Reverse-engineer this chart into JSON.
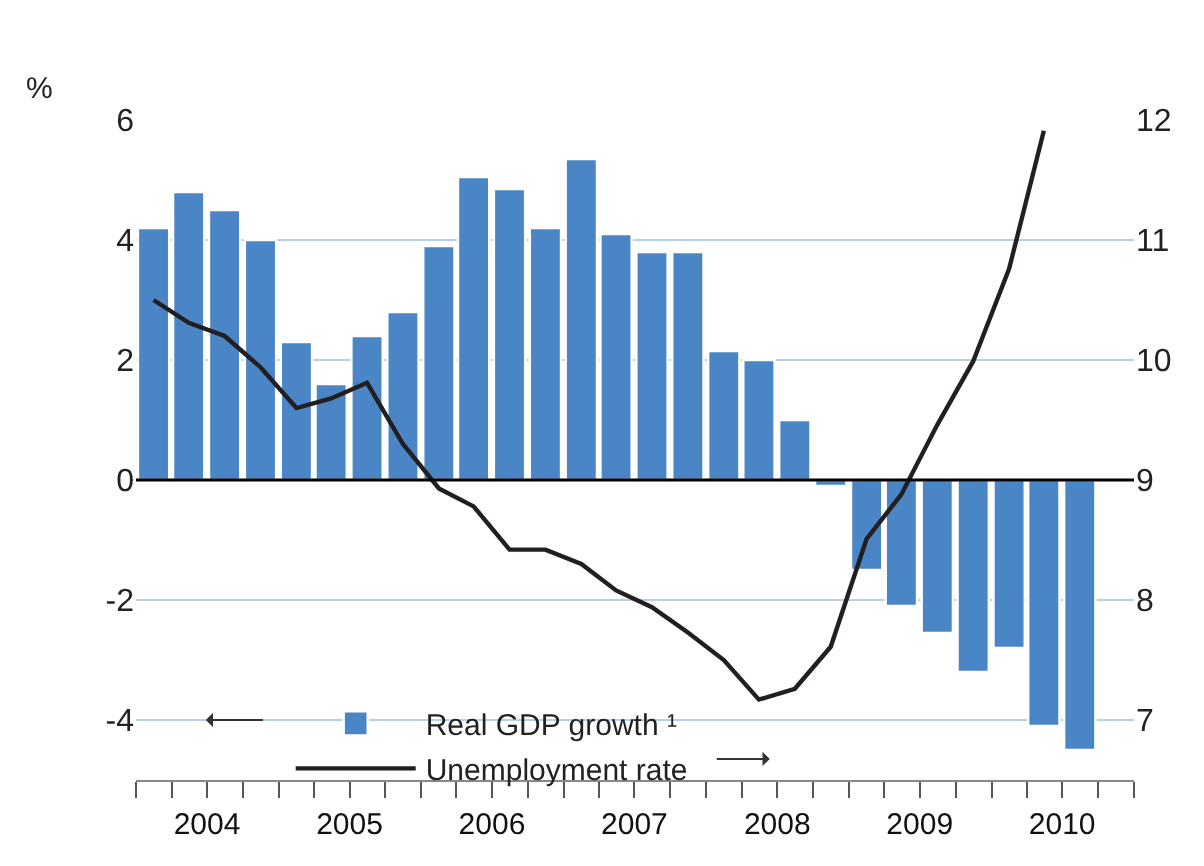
{
  "chart_data": {
    "type": "bar",
    "ylabel": "%",
    "x": [
      "2004-02-15",
      "2004-05-15",
      "2004-08-15",
      "2004-11-15",
      "2005-02-15",
      "2005-05-15",
      "2005-08-15",
      "2005-11-15",
      "2006-02-15",
      "2006-05-15",
      "2006-08-15",
      "2006-11-15",
      "2007-02-15",
      "2007-05-15",
      "2007-08-15",
      "2007-11-15",
      "2008-02-15",
      "2008-05-15",
      "2008-08-15",
      "2008-11-15",
      "2009-02-15",
      "2009-05-15",
      "2009-08-15",
      "2009-11-15",
      "2010-02-15",
      "2010-05-15",
      "2010-08-15"
    ],
    "series": [
      {
        "name": "Real GDP growth ¹",
        "color": "#4a86c5",
        "values": [
          4.2,
          4.8,
          4.5,
          4.0,
          2.3,
          1.6,
          2.4,
          2.8,
          3.9,
          5.05,
          4.85,
          4.2,
          5.35,
          4.1,
          3.8,
          3.8,
          2.15,
          2.0,
          1.0,
          -0.1,
          -1.5,
          -2.1,
          -2.55,
          -3.2,
          -2.8,
          -4.1,
          -4.5
        ]
      },
      {
        "name": "Unemployment rate",
        "type": "line",
        "axis": "y2",
        "color": "#231f20",
        "values": [
          10.5,
          10.31,
          10.2,
          9.94,
          9.6,
          9.68,
          9.81,
          9.3,
          8.93,
          8.78,
          8.42,
          8.42,
          8.3,
          8.08,
          7.94,
          7.73,
          7.5,
          7.17,
          7.26,
          7.61,
          8.51,
          8.88,
          9.46,
          9.99,
          10.76,
          11.91,
          null
        ]
      }
    ],
    "xlim": [
      "2004-01-01",
      "2011-01-01"
    ],
    "xticks": [
      {
        "value": "2004-01-01",
        "label": null
      },
      {
        "value": "2004-04-01",
        "label": null
      },
      {
        "value": "2004-07-01",
        "label": "2004"
      },
      {
        "value": "2004-10-01",
        "label": null
      },
      {
        "value": "2005-01-01",
        "label": null
      },
      {
        "value": "2005-04-01",
        "label": null
      },
      {
        "value": "2005-07-01",
        "label": "2005"
      },
      {
        "value": "2005-10-01",
        "label": null
      },
      {
        "value": "2006-01-01",
        "label": null
      },
      {
        "value": "2006-04-01",
        "label": null
      },
      {
        "value": "2006-07-01",
        "label": "2006"
      },
      {
        "value": "2006-10-01",
        "label": null
      },
      {
        "value": "2007-01-01",
        "label": null
      },
      {
        "value": "2007-04-01",
        "label": null
      },
      {
        "value": "2007-07-01",
        "label": "2007"
      },
      {
        "value": "2007-10-01",
        "label": null
      },
      {
        "value": "2008-01-01",
        "label": null
      },
      {
        "value": "2008-04-01",
        "label": null
      },
      {
        "value": "2008-07-01",
        "label": "2008"
      },
      {
        "value": "2008-10-01",
        "label": null
      },
      {
        "value": "2009-01-01",
        "label": null
      },
      {
        "value": "2009-04-01",
        "label": null
      },
      {
        "value": "2009-07-01",
        "label": "2009"
      },
      {
        "value": "2009-10-01",
        "label": null
      },
      {
        "value": "2010-01-01",
        "label": null
      },
      {
        "value": "2010-04-01",
        "label": null
      },
      {
        "value": "2010-07-01",
        "label": "2010"
      },
      {
        "value": "2010-10-01",
        "label": null
      },
      {
        "value": "2011-01-01",
        "label": null
      }
    ],
    "ylim": [
      -5,
      6
    ],
    "yticks": [
      -4,
      -2,
      0,
      2,
      4,
      6
    ],
    "y2lim": [
      6.5,
      12
    ],
    "y2ticks": [
      7,
      8,
      9,
      10,
      11,
      12
    ],
    "ref_lines": [
      {
        "axis": "y",
        "value": 0,
        "color": "#000000"
      }
    ],
    "grid": "y",
    "legend": "bottom left"
  }
}
